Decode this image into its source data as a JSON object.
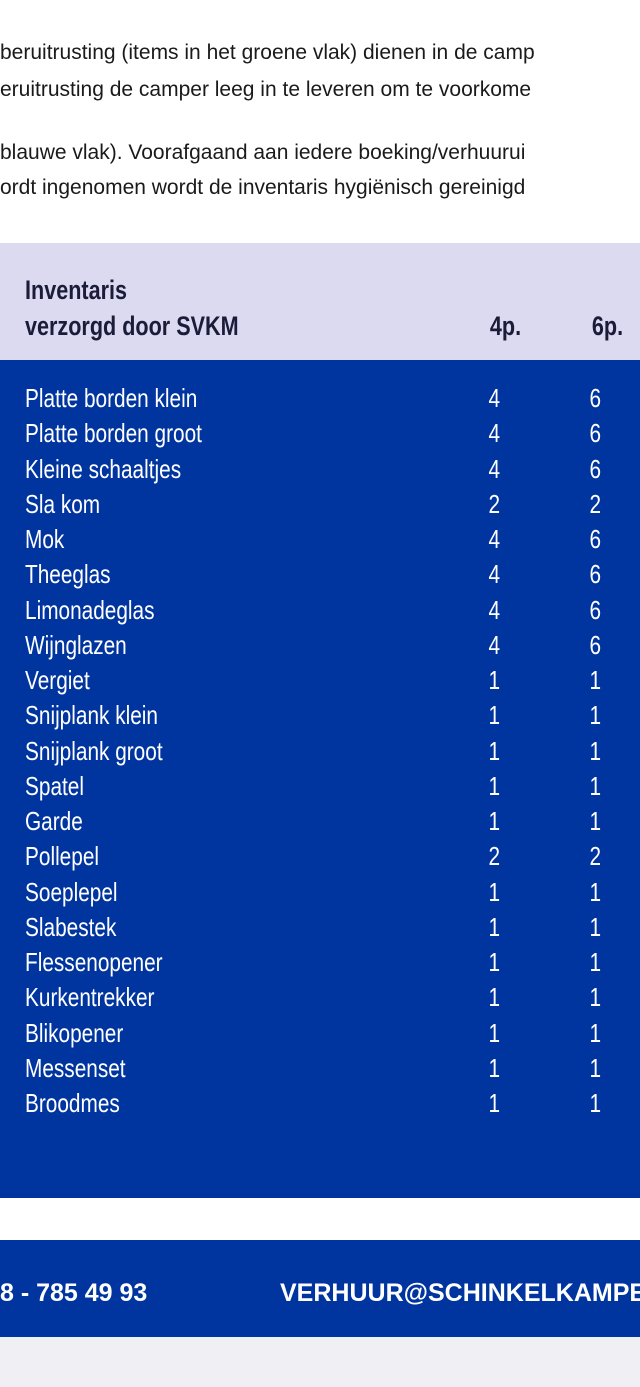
{
  "intro": [
    "beruitrusting (items in het groene vlak) dienen in de camp",
    "eruitrusting de camper leeg in te leveren om te voorkome",
    "blauwe vlak). Voorafgaand aan iedere boeking/verhuurui",
    "ordt ingenomen wordt de inventaris hygiënisch gereinigd"
  ],
  "table": {
    "header": [
      "Inventaris",
      "verzorgd door SVKM",
      "4p.",
      "6p."
    ],
    "rows": [
      [
        "Platte borden klein",
        "4",
        "6"
      ],
      [
        "Platte borden groot",
        "4",
        "6"
      ],
      [
        "Kleine schaaltjes",
        "4",
        "6"
      ],
      [
        "Sla kom",
        "2",
        "2"
      ],
      [
        "Mok",
        "4",
        "6"
      ],
      [
        "Theeglas",
        "4",
        "6"
      ],
      [
        "Limonadeglas",
        "4",
        "6"
      ],
      [
        "Wijnglazen",
        "4",
        "6"
      ],
      [
        "Vergiet",
        "1",
        "1"
      ],
      [
        "Snijplank klein",
        "1",
        "1"
      ],
      [
        "Snijplank groot",
        "1",
        "1"
      ],
      [
        "Spatel",
        "1",
        "1"
      ],
      [
        "Garde",
        "1",
        "1"
      ],
      [
        "Pollepel",
        "2",
        "2"
      ],
      [
        "Soeplepel",
        "1",
        "1"
      ],
      [
        "Slabestek",
        "1",
        "1"
      ],
      [
        "Flessenopener",
        "1",
        "1"
      ],
      [
        "Kurkentrekker",
        "1",
        "1"
      ],
      [
        "Blikopener",
        "1",
        "1"
      ],
      [
        "Messenset",
        "1",
        "1"
      ],
      [
        "Broodmes",
        "1",
        "1"
      ]
    ]
  },
  "footer": {
    "phone": "8 - 785 49 93",
    "email": "VERHUUR@SCHINKELKAMPE"
  }
}
